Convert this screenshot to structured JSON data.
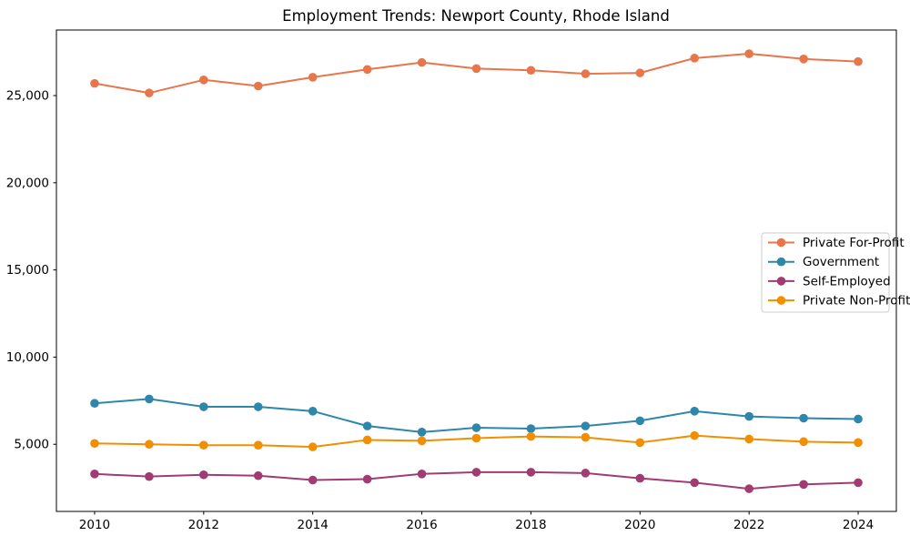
{
  "chart_data": {
    "type": "line",
    "title": "Employment Trends: Newport County, Rhode Island",
    "xlabel": "",
    "ylabel": "",
    "grid": false,
    "legend_position": "center right",
    "marker": "circle",
    "text_color": "#000000",
    "spine_color": "#000000",
    "background_color": "#ffffff",
    "legend_border_color": "#cccccc",
    "x": [
      2010,
      2011,
      2012,
      2013,
      2014,
      2015,
      2016,
      2017,
      2018,
      2019,
      2020,
      2021,
      2022,
      2023,
      2024
    ],
    "xticks": [
      2010,
      2012,
      2014,
      2016,
      2018,
      2020,
      2022,
      2024
    ],
    "yticks": [
      5000,
      10000,
      15000,
      20000,
      25000
    ],
    "xlim": [
      2009.3,
      2024.7
    ],
    "ylim": [
      1150,
      28760
    ],
    "series": [
      {
        "name": "Private For-Profit",
        "color": "#E8764B",
        "values": [
          25700,
          25150,
          25900,
          25550,
          26050,
          26500,
          26900,
          26550,
          26450,
          26250,
          26300,
          27150,
          27400,
          27100,
          26950
        ]
      },
      {
        "name": "Government",
        "color": "#2E86AB",
        "values": [
          7350,
          7600,
          7150,
          7150,
          6900,
          6050,
          5700,
          5950,
          5900,
          6050,
          6350,
          6900,
          6600,
          6500,
          6450
        ]
      },
      {
        "name": "Self-Employed",
        "color": "#A23B72",
        "values": [
          3300,
          3150,
          3250,
          3200,
          2950,
          3000,
          3300,
          3400,
          3400,
          3350,
          3050,
          2800,
          2450,
          2700,
          2800
        ]
      },
      {
        "name": "Private Non-Profit",
        "color": "#F18F01",
        "values": [
          5050,
          5000,
          4950,
          4950,
          4850,
          5250,
          5200,
          5350,
          5450,
          5400,
          5100,
          5500,
          5300,
          5150,
          5100
        ]
      }
    ]
  }
}
